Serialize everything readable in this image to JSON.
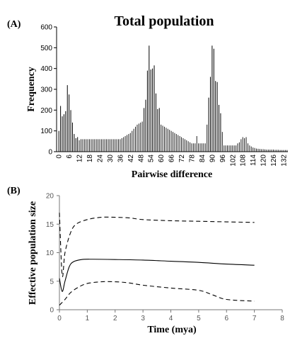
{
  "panel_a_label": "(A)",
  "panel_b_label": "(B)",
  "chart_data": [
    {
      "type": "bar",
      "title": "Total population",
      "xlabel": "Pairwise difference",
      "ylabel": "Frequency",
      "ylim": [
        0,
        600
      ],
      "xlim": [
        0,
        135
      ],
      "yticks": [
        0,
        100,
        200,
        300,
        400,
        500,
        600
      ],
      "xticks": [
        0,
        6,
        12,
        18,
        24,
        30,
        36,
        42,
        48,
        54,
        60,
        66,
        72,
        78,
        84,
        90,
        96,
        102,
        108,
        114,
        120,
        126,
        132
      ],
      "grid": false,
      "series": [
        {
          "x": [
            0,
            1,
            2,
            3,
            4,
            5,
            6,
            7,
            8,
            9,
            10,
            11,
            12,
            13,
            14,
            15,
            16,
            17,
            18,
            19,
            20,
            21,
            22,
            23,
            24,
            25,
            26,
            27,
            28,
            29,
            30,
            31,
            32,
            33,
            34,
            35,
            36,
            37,
            38,
            39,
            40,
            41,
            42,
            43,
            44,
            45,
            46,
            47,
            48,
            49,
            50,
            51,
            52,
            53,
            54,
            55,
            56,
            57,
            58,
            59,
            60,
            61,
            62,
            63,
            64,
            65,
            66,
            67,
            68,
            69,
            70,
            71,
            72,
            73,
            74,
            75,
            76,
            77,
            78,
            79,
            80,
            81,
            82,
            83,
            84,
            85,
            86,
            87,
            88,
            89,
            90,
            91,
            92,
            93,
            94,
            95,
            96,
            97,
            98,
            99,
            100,
            101,
            102,
            103,
            104,
            105,
            106,
            107,
            108,
            109,
            110,
            111,
            112,
            113,
            114,
            115,
            116,
            117,
            118,
            119,
            120,
            121,
            122,
            123,
            124,
            125,
            126,
            127,
            128,
            129,
            130,
            131,
            132,
            133,
            134
          ],
          "values": [
            100,
            220,
            170,
            180,
            195,
            320,
            275,
            200,
            140,
            85,
            65,
            70,
            55,
            60,
            60,
            60,
            60,
            60,
            60,
            60,
            60,
            60,
            60,
            60,
            60,
            60,
            60,
            60,
            60,
            60,
            60,
            60,
            60,
            60,
            60,
            60,
            60,
            65,
            70,
            75,
            80,
            85,
            90,
            100,
            110,
            120,
            130,
            135,
            140,
            145,
            210,
            250,
            390,
            510,
            395,
            400,
            415,
            280,
            205,
            210,
            130,
            125,
            120,
            115,
            110,
            105,
            100,
            95,
            90,
            85,
            80,
            75,
            70,
            65,
            60,
            55,
            50,
            45,
            40,
            40,
            40,
            75,
            40,
            40,
            40,
            40,
            40,
            130,
            260,
            360,
            510,
            495,
            340,
            335,
            225,
            185,
            95,
            30,
            30,
            30,
            30,
            30,
            30,
            30,
            30,
            40,
            45,
            60,
            70,
            65,
            70,
            40,
            30,
            25,
            20,
            18,
            15,
            14,
            13,
            12,
            12,
            11,
            10,
            10,
            10,
            10,
            10,
            9,
            9,
            9,
            8,
            8,
            8,
            8,
            8
          ]
        }
      ]
    },
    {
      "type": "line",
      "title": "",
      "xlabel": "Time (mya)",
      "ylabel": "Effective population size",
      "xlim": [
        0,
        8
      ],
      "ylim": [
        0,
        20
      ],
      "xticks": [
        0,
        1,
        2,
        3,
        4,
        5,
        6,
        7,
        8
      ],
      "yticks": [
        0,
        5,
        10,
        15,
        20
      ],
      "grid": false,
      "series": [
        {
          "style": "solid",
          "x": [
            0,
            0.1,
            0.2,
            0.35,
            0.5,
            0.8,
            1.2,
            2,
            3,
            4,
            5,
            6,
            7
          ],
          "values": [
            5.5,
            3.2,
            5.0,
            7.5,
            8.4,
            8.8,
            8.85,
            8.8,
            8.7,
            8.5,
            8.3,
            8.0,
            7.8
          ]
        },
        {
          "style": "dashed",
          "x": [
            0,
            0.1,
            0.2,
            0.4,
            0.6,
            1,
            1.5,
            2,
            2.5,
            3,
            4,
            5,
            6,
            7
          ],
          "values": [
            17,
            6,
            10,
            13.5,
            15,
            15.8,
            16.2,
            16.2,
            16.1,
            15.8,
            15.6,
            15.5,
            15.4,
            15.3
          ]
        },
        {
          "style": "dashed",
          "x": [
            0,
            0.2,
            0.4,
            0.7,
            1,
            1.5,
            2,
            2.5,
            3,
            4,
            5,
            5.5,
            6,
            7
          ],
          "values": [
            0.8,
            1.8,
            3.0,
            4.0,
            4.6,
            4.9,
            4.9,
            4.7,
            4.3,
            3.8,
            3.4,
            2.6,
            1.8,
            1.5
          ]
        }
      ]
    }
  ]
}
